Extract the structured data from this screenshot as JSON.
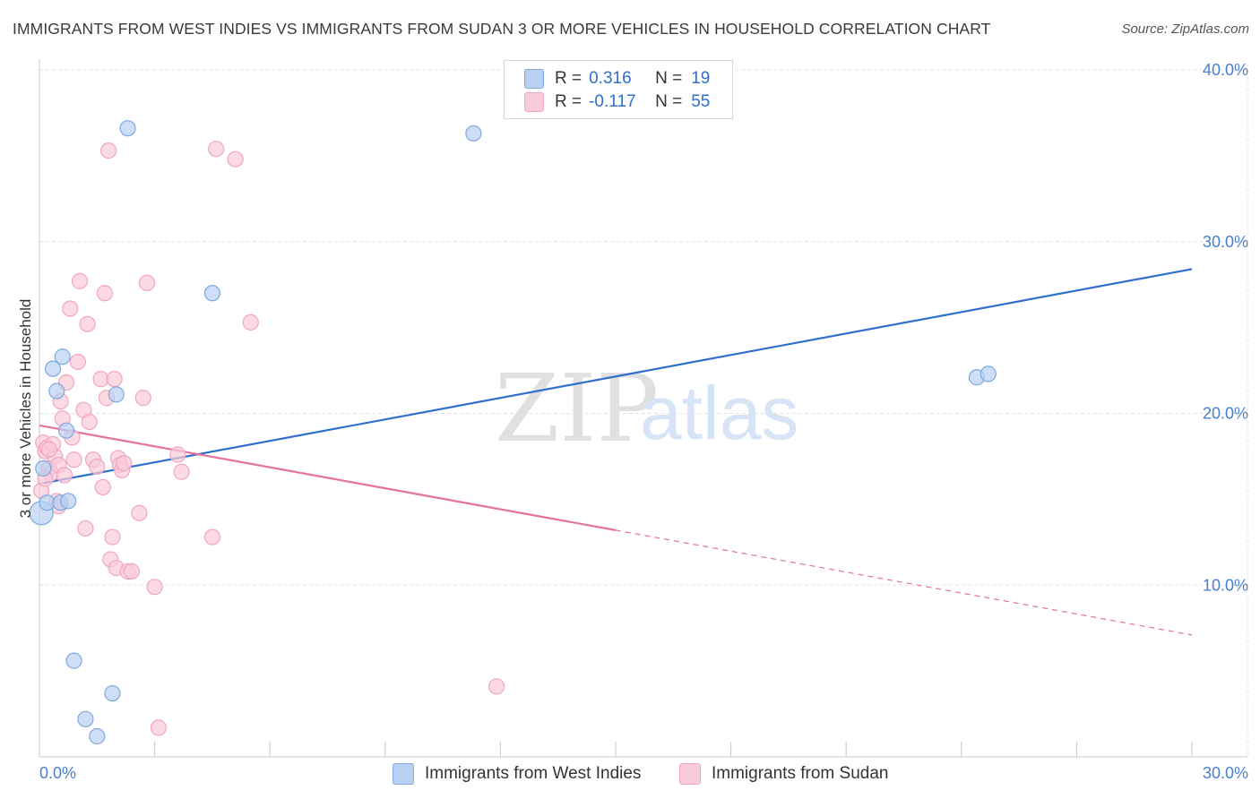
{
  "title": "IMMIGRANTS FROM WEST INDIES VS IMMIGRANTS FROM SUDAN 3 OR MORE VEHICLES IN HOUSEHOLD CORRELATION CHART",
  "source": "Source: ZipAtlas.com",
  "watermark": {
    "part1": "ZIP",
    "part2": "atlas"
  },
  "legend": {
    "rows": [
      {
        "r_label": "R =",
        "r_value": "0.316",
        "n_label": "N =",
        "n_value": "19"
      },
      {
        "r_label": "R =",
        "r_value": "-0.117",
        "n_label": "N =",
        "n_value": "55"
      }
    ]
  },
  "chart_data": {
    "type": "scatter",
    "xlabel": "",
    "ylabel": "3 or more Vehicles in Household",
    "xlim": [
      0,
      30
    ],
    "ylim": [
      0,
      40
    ],
    "x_tick_labels": [
      "0.0%",
      "30.0%"
    ],
    "y_ticks": [
      10,
      20,
      30,
      40
    ],
    "y_tick_labels": [
      "10.0%",
      "20.0%",
      "30.0%",
      "40.0%"
    ],
    "grid": true,
    "legend_position": "top-center",
    "series": [
      {
        "name": "Immigrants from West Indies",
        "color": "#7fa8e0",
        "fill": "#b8d0f2",
        "line_color": "#2f6fce",
        "R": 0.316,
        "N": 19,
        "points": [
          [
            0.05,
            14.2
          ],
          [
            0.1,
            16.8
          ],
          [
            0.2,
            14.8
          ],
          [
            0.35,
            22.6
          ],
          [
            0.45,
            21.3
          ],
          [
            0.55,
            14.8
          ],
          [
            0.6,
            23.3
          ],
          [
            0.7,
            19.0
          ],
          [
            0.75,
            14.9
          ],
          [
            0.9,
            5.6
          ],
          [
            1.2,
            2.2
          ],
          [
            1.5,
            1.2
          ],
          [
            1.9,
            3.7
          ],
          [
            2.0,
            21.1
          ],
          [
            2.3,
            36.6
          ],
          [
            4.5,
            27.0
          ],
          [
            11.3,
            36.3
          ],
          [
            24.4,
            22.1
          ],
          [
            24.7,
            22.3
          ]
        ],
        "trend": {
          "x": [
            0,
            30
          ],
          "y": [
            15.9,
            28.4
          ]
        }
      },
      {
        "name": "Immigrants from Sudan",
        "color": "#f0a6bf",
        "fill": "#f9cbd9",
        "line_color": "#e4739b",
        "R": -0.117,
        "N": 55,
        "points": [
          [
            0.05,
            15.5
          ],
          [
            0.1,
            18.3
          ],
          [
            0.15,
            17.8
          ],
          [
            0.2,
            18.0
          ],
          [
            0.25,
            16.8
          ],
          [
            0.3,
            16.5
          ],
          [
            0.4,
            17.5
          ],
          [
            0.45,
            14.9
          ],
          [
            0.5,
            14.6
          ],
          [
            0.55,
            20.7
          ],
          [
            0.6,
            19.7
          ],
          [
            0.7,
            21.8
          ],
          [
            0.8,
            26.1
          ],
          [
            0.85,
            18.6
          ],
          [
            0.9,
            17.3
          ],
          [
            1.0,
            23.0
          ],
          [
            1.05,
            27.7
          ],
          [
            1.15,
            20.2
          ],
          [
            1.2,
            13.3
          ],
          [
            1.25,
            25.2
          ],
          [
            1.3,
            19.5
          ],
          [
            1.4,
            17.3
          ],
          [
            1.5,
            16.9
          ],
          [
            1.6,
            22.0
          ],
          [
            1.65,
            15.7
          ],
          [
            1.7,
            27.0
          ],
          [
            1.75,
            20.9
          ],
          [
            1.8,
            35.3
          ],
          [
            1.85,
            11.5
          ],
          [
            1.9,
            12.8
          ],
          [
            1.95,
            22.0
          ],
          [
            2.0,
            11.0
          ],
          [
            2.05,
            17.4
          ],
          [
            2.1,
            17.0
          ],
          [
            2.15,
            16.7
          ],
          [
            2.2,
            17.1
          ],
          [
            2.3,
            10.8
          ],
          [
            2.4,
            10.8
          ],
          [
            2.6,
            14.2
          ],
          [
            2.7,
            20.9
          ],
          [
            2.8,
            27.6
          ],
          [
            3.0,
            9.9
          ],
          [
            3.1,
            1.7
          ],
          [
            3.6,
            17.6
          ],
          [
            3.7,
            16.6
          ],
          [
            4.5,
            12.8
          ],
          [
            4.6,
            35.4
          ],
          [
            5.1,
            34.8
          ],
          [
            5.5,
            25.3
          ],
          [
            11.9,
            4.1
          ],
          [
            0.15,
            16.2
          ],
          [
            0.35,
            18.2
          ],
          [
            0.5,
            17.0
          ],
          [
            0.65,
            16.4
          ],
          [
            0.25,
            17.9
          ]
        ],
        "trend": {
          "x": [
            0,
            15
          ],
          "y": [
            19.3,
            13.2
          ]
        },
        "trend_dashed": {
          "x": [
            15,
            30
          ],
          "y": [
            13.2,
            7.1
          ]
        }
      }
    ]
  }
}
